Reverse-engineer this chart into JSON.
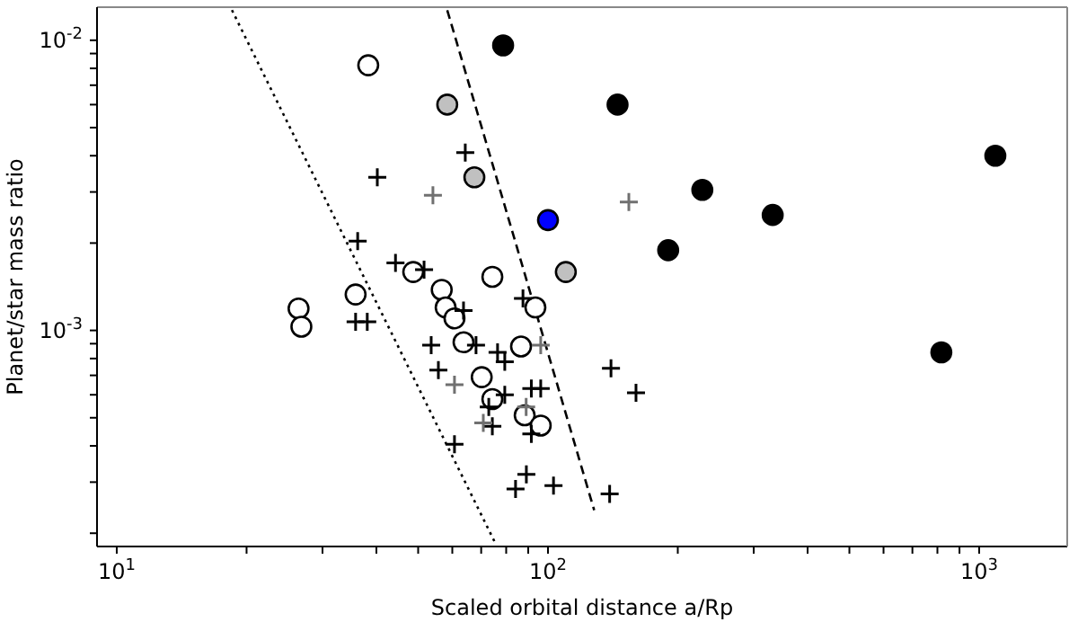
{
  "chart_data": {
    "type": "scatter",
    "xlabel": "Scaled orbital distance a/Rp",
    "ylabel": "Planet/star mass ratio",
    "log": "xy",
    "xlim": [
      9,
      1600
    ],
    "ylim": [
      0.00018,
      0.013
    ],
    "xticks": [
      {
        "value": 10,
        "label": "10$^{1}$"
      },
      {
        "value": 20,
        "label": null
      },
      {
        "value": 30,
        "label": null
      },
      {
        "value": 40,
        "label": null
      },
      {
        "value": 50,
        "label": null
      },
      {
        "value": 60,
        "label": null
      },
      {
        "value": 70,
        "label": null
      },
      {
        "value": 80,
        "label": null
      },
      {
        "value": 90,
        "label": null
      },
      {
        "value": 100,
        "label": "10$^{2}$"
      },
      {
        "value": 200,
        "label": null
      },
      {
        "value": 300,
        "label": null
      },
      {
        "value": 400,
        "label": null
      },
      {
        "value": 500,
        "label": null
      },
      {
        "value": 600,
        "label": null
      },
      {
        "value": 700,
        "label": null
      },
      {
        "value": 800,
        "label": null
      },
      {
        "value": 900,
        "label": null
      },
      {
        "value": 1000,
        "label": "10$^{3}$"
      }
    ],
    "yticks": [
      {
        "value": 0.0002,
        "label": null
      },
      {
        "value": 0.0003,
        "label": null
      },
      {
        "value": 0.0004,
        "label": null
      },
      {
        "value": 0.0005,
        "label": null
      },
      {
        "value": 0.0006,
        "label": null
      },
      {
        "value": 0.0007,
        "label": null
      },
      {
        "value": 0.0008,
        "label": null
      },
      {
        "value": 0.0009,
        "label": null
      },
      {
        "value": 0.001,
        "label": "10$^{-3}$"
      },
      {
        "value": 0.002,
        "label": null
      },
      {
        "value": 0.003,
        "label": null
      },
      {
        "value": 0.004,
        "label": null
      },
      {
        "value": 0.005,
        "label": null
      },
      {
        "value": 0.006,
        "label": null
      },
      {
        "value": 0.007,
        "label": null
      },
      {
        "value": 0.008,
        "label": null
      },
      {
        "value": 0.009,
        "label": null
      },
      {
        "value": 0.01,
        "label": "10$^{-2}$"
      }
    ],
    "series": [
      {
        "type": "line",
        "line_style": "dotted",
        "color": "#000000",
        "x": [
          18.5,
          75.6
        ],
        "values": [
          0.0127,
          0.000184
        ]
      },
      {
        "type": "line",
        "line_style": "dashed",
        "color": "#000000",
        "x": [
          58.4,
          128
        ],
        "values": [
          0.0127,
          0.00024
        ]
      },
      {
        "marker": "cross",
        "color": "#000000",
        "x": [
          40.2,
          36.2,
          44.3,
          51.6,
          35.8,
          38.1,
          64.3,
          63.7,
          53.6,
          55.7,
          68.1,
          76.4,
          79.4,
          60.7,
          79.4,
          72.9,
          74.3,
          84.1,
          89.1,
          87.5,
          140,
          160,
          91.5,
          96.2,
          91.5,
          103,
          139
        ],
        "values": [
          0.00337,
          0.00203,
          0.00171,
          0.00162,
          0.00107,
          0.00107,
          0.0041,
          0.00117,
          0.00089,
          0.00073,
          0.00089,
          0.00084,
          0.00078,
          0.000405,
          0.0006,
          0.000545,
          0.000467,
          0.000284,
          0.000319,
          0.00129,
          0.00074,
          0.00061,
          0.00063,
          0.00063,
          0.00044,
          0.000292,
          0.000273
        ]
      },
      {
        "marker": "cross",
        "color": "#707070",
        "x": [
          54.1,
          60.7,
          70.8,
          154,
          96.2,
          89
        ],
        "values": [
          0.00292,
          0.00065,
          0.00048,
          0.00277,
          0.00089,
          0.000545
        ]
      },
      {
        "marker": "circle",
        "color": "#ffffff",
        "x": [
          38.3,
          26.4,
          26.8,
          35.8,
          48.7,
          56.7,
          57.9,
          60.7,
          74.3,
          63.7,
          86.6,
          70.2,
          74.3,
          88.3,
          93.5,
          96.2
        ],
        "values": [
          0.0082,
          0.00119,
          0.00103,
          0.00133,
          0.00159,
          0.00138,
          0.0012,
          0.0011,
          0.00153,
          0.00091,
          0.00088,
          0.00069,
          0.00058,
          0.00051,
          0.0012,
          0.00047
        ]
      },
      {
        "marker": "circle",
        "color": "#c0c0c0",
        "x": [
          58.4,
          67.5,
          110
        ],
        "values": [
          0.006,
          0.00337,
          0.00159
        ]
      },
      {
        "marker": "circle",
        "color": "#000000",
        "x": [
          78.7,
          145,
          1090,
          228,
          332,
          190,
          817
        ],
        "values": [
          0.0096,
          0.006,
          0.004,
          0.00305,
          0.0025,
          0.00189,
          0.00084
        ]
      },
      {
        "marker": "circle",
        "color": "#0000ff",
        "x": [
          100
        ],
        "values": [
          0.0024
        ]
      }
    ]
  }
}
